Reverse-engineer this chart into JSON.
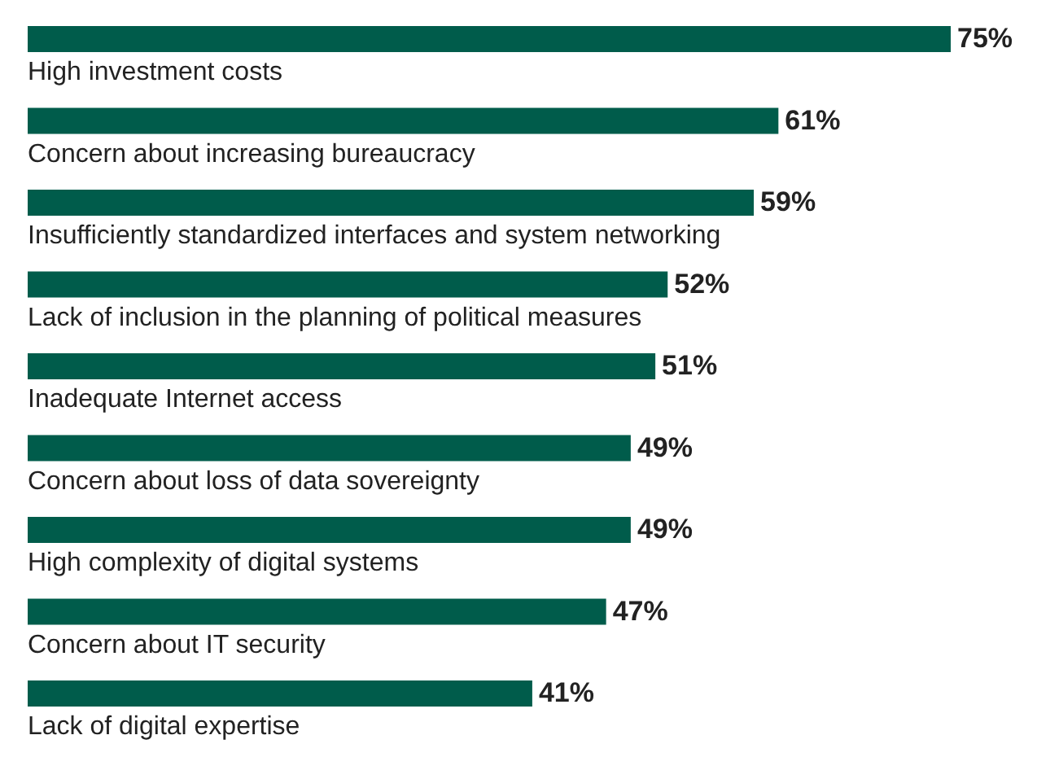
{
  "chart_data": {
    "type": "bar",
    "orientation": "horizontal",
    "categories": [
      "High investment costs",
      "Concern about increasing bureaucracy",
      "Insufficiently standardized interfaces and system networking",
      "Lack of inclusion in the planning of political measures",
      "Inadequate Internet access",
      "Concern about loss of data sovereignty",
      "High complexity of digital systems",
      "Concern about IT security",
      "Lack of digital expertise"
    ],
    "values": [
      75,
      61,
      59,
      52,
      51,
      49,
      49,
      47,
      41
    ],
    "value_labels": [
      "75%",
      "61%",
      "59%",
      "52%",
      "51%",
      "49%",
      "49%",
      "47%",
      "41%"
    ],
    "color": "#005c4b"
  }
}
